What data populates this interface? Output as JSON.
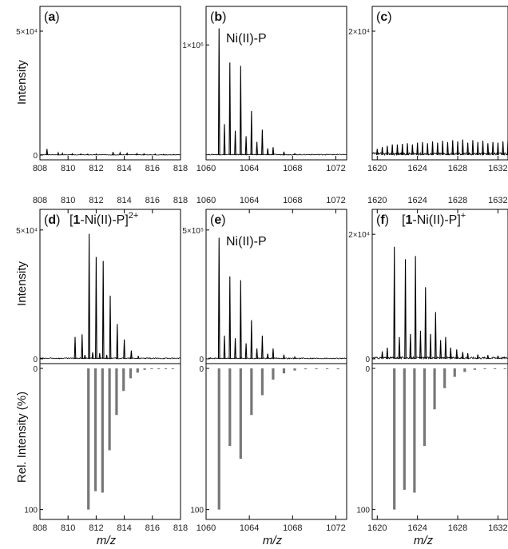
{
  "ylabels": {
    "intensity": "Intensity",
    "rel_intensity": "Rel. Intensity (%)"
  },
  "xlabel": "m/z",
  "chart_data": [
    {
      "panel": "(a)",
      "type": "line",
      "row": "top",
      "col": 0,
      "xlim": [
        808,
        818
      ],
      "xticks": [
        808,
        810,
        812,
        814,
        816,
        818
      ],
      "ylim": [
        0,
        60000
      ],
      "ytick_labels": [
        "0",
        "5×10⁴"
      ],
      "ytick_values": [
        0,
        50000
      ],
      "annotation": "",
      "peaks": [
        [
          808.5,
          2500
        ],
        [
          809.3,
          900
        ],
        [
          809.6,
          700
        ],
        [
          810.3,
          500
        ],
        [
          810.9,
          400
        ],
        [
          811.4,
          350
        ],
        [
          812.0,
          400
        ],
        [
          813.2,
          1200
        ],
        [
          813.7,
          900
        ],
        [
          814.2,
          700
        ],
        [
          814.9,
          600
        ],
        [
          815.4,
          500
        ],
        [
          816.2,
          400
        ],
        [
          816.8,
          300
        ],
        [
          817.5,
          250
        ]
      ],
      "noise": 200
    },
    {
      "panel": "(b)",
      "type": "line",
      "row": "top",
      "col": 1,
      "xlim": [
        1060,
        1073
      ],
      "xticks": [
        1060,
        1064,
        1068,
        1072
      ],
      "ylim": [
        0,
        1350000
      ],
      "ytick_labels": [
        "1×10⁶"
      ],
      "ytick_values": [
        1000000
      ],
      "annotation": "Ni(II)-P",
      "peaks": [
        [
          1061.2,
          1150000
        ],
        [
          1061.7,
          280000
        ],
        [
          1062.2,
          840000
        ],
        [
          1062.7,
          220000
        ],
        [
          1063.2,
          810000
        ],
        [
          1063.7,
          170000
        ],
        [
          1064.2,
          400000
        ],
        [
          1064.7,
          120000
        ],
        [
          1065.2,
          230000
        ],
        [
          1065.7,
          60000
        ],
        [
          1066.2,
          70000
        ],
        [
          1067.2,
          30000
        ],
        [
          1068.2,
          12000
        ]
      ],
      "noise": 8000
    },
    {
      "panel": "(c)",
      "type": "line",
      "row": "top",
      "col": 2,
      "xlim": [
        1619.5,
        1633
      ],
      "xticks": [
        1620,
        1624,
        1628,
        1632
      ],
      "ylim": [
        0,
        24000
      ],
      "ytick_labels": [
        "2×10⁴"
      ],
      "ytick_values": [
        20000
      ],
      "annotation": "",
      "envelope": {
        "start": 1620.0,
        "step": 0.5,
        "values": [
          1000,
          1300,
          1500,
          1700,
          1700,
          1800,
          1900,
          1700,
          2000,
          2100,
          1900,
          2200,
          2000,
          2300,
          2100,
          2400,
          2200,
          2500,
          2000,
          2400,
          2100,
          2300,
          1900,
          2100,
          2000,
          2200,
          2400,
          2600,
          3000,
          3200,
          3400,
          3500,
          3300,
          3100,
          2800,
          2400,
          2100,
          1900,
          1700,
          1500
        ]
      },
      "noise": 400
    },
    {
      "panel": "(d)",
      "type": "line",
      "row": "mid",
      "col": 0,
      "xlim": [
        808,
        818
      ],
      "xticks": [
        808,
        810,
        812,
        814,
        816,
        818
      ],
      "ylim": [
        0,
        58000
      ],
      "ytick_labels": [
        "0",
        "5×10⁴"
      ],
      "ytick_values": [
        0,
        50000
      ],
      "annotation": "[1-Ni(II)-P]2+",
      "peaks": [
        [
          810.5,
          8500
        ],
        [
          811.0,
          9500
        ],
        [
          811.2,
          1500
        ],
        [
          811.5,
          48500
        ],
        [
          811.75,
          2500
        ],
        [
          812.0,
          39500
        ],
        [
          812.25,
          2200
        ],
        [
          812.5,
          38000
        ],
        [
          812.75,
          1500
        ],
        [
          813.0,
          24500
        ],
        [
          813.5,
          13500
        ],
        [
          814.0,
          7500
        ],
        [
          814.5,
          3200
        ],
        [
          815.0,
          1100
        ]
      ],
      "noise": 400
    },
    {
      "panel": "(e)",
      "type": "line",
      "row": "mid",
      "col": 1,
      "xlim": [
        1060,
        1073
      ],
      "xticks": [
        1060,
        1064,
        1068,
        1072
      ],
      "ylim": [
        0,
        580000
      ],
      "ytick_labels": [
        "0",
        "5×10⁵"
      ],
      "ytick_values": [
        0,
        500000
      ],
      "annotation": "Ni(II)-P",
      "peaks": [
        [
          1061.2,
          470000
        ],
        [
          1061.7,
          90000
        ],
        [
          1062.2,
          320000
        ],
        [
          1062.7,
          80000
        ],
        [
          1063.2,
          305000
        ],
        [
          1063.7,
          60000
        ],
        [
          1064.2,
          150000
        ],
        [
          1064.7,
          40000
        ],
        [
          1065.2,
          90000
        ],
        [
          1065.7,
          20000
        ],
        [
          1066.2,
          40000
        ],
        [
          1067.2,
          16000
        ],
        [
          1068.2,
          7000
        ]
      ],
      "noise": 4000
    },
    {
      "panel": "(f)",
      "type": "line",
      "row": "mid",
      "col": 2,
      "xlim": [
        1619.5,
        1633
      ],
      "xticks": [
        1620,
        1624,
        1628,
        1632
      ],
      "ylim": [
        0,
        24000
      ],
      "ytick_labels": [
        "0",
        "2×10⁴"
      ],
      "ytick_values": [
        0,
        20000
      ],
      "annotation": "[1-Ni(II)-P]+",
      "peaks": [
        [
          1620.5,
          1200
        ],
        [
          1621.0,
          1800
        ],
        [
          1621.7,
          18000
        ],
        [
          1622.2,
          3500
        ],
        [
          1622.8,
          16000
        ],
        [
          1623.3,
          4000
        ],
        [
          1623.8,
          16500
        ],
        [
          1624.3,
          4500
        ],
        [
          1624.8,
          11500
        ],
        [
          1625.3,
          4000
        ],
        [
          1625.8,
          7500
        ],
        [
          1626.3,
          3000
        ],
        [
          1626.8,
          3500
        ],
        [
          1627.3,
          1800
        ],
        [
          1627.9,
          1500
        ],
        [
          1628.5,
          1100
        ],
        [
          1629.0,
          900
        ],
        [
          1630.0,
          700
        ],
        [
          1631.0,
          600
        ],
        [
          1632.0,
          500
        ]
      ],
      "noise": 300
    },
    {
      "panel": "",
      "type": "bar",
      "row": "bottom",
      "col": 0,
      "xlim": [
        808,
        818
      ],
      "xticks": [
        808,
        810,
        812,
        814,
        816,
        818
      ],
      "ylim": [
        0,
        107
      ],
      "inverted": true,
      "ytick_labels": [
        "0",
        "100"
      ],
      "ytick_values": [
        0,
        100
      ],
      "bars": [
        [
          811.45,
          100
        ],
        [
          811.95,
          87
        ],
        [
          812.45,
          88
        ],
        [
          812.95,
          58
        ],
        [
          813.45,
          33
        ],
        [
          813.95,
          16
        ],
        [
          814.45,
          7
        ],
        [
          814.95,
          3
        ],
        [
          815.45,
          1
        ],
        [
          815.95,
          0.5
        ],
        [
          816.45,
          0.3
        ],
        [
          816.95,
          0.2
        ],
        [
          817.45,
          0.1
        ]
      ]
    },
    {
      "panel": "",
      "type": "bar",
      "row": "bottom",
      "col": 1,
      "xlim": [
        1060,
        1073
      ],
      "xticks": [
        1060,
        1064,
        1068,
        1072
      ],
      "ylim": [
        0,
        107
      ],
      "inverted": true,
      "ytick_labels": [
        "0",
        "100"
      ],
      "ytick_values": [
        0,
        100
      ],
      "bars": [
        [
          1061.2,
          100
        ],
        [
          1062.2,
          55
        ],
        [
          1063.2,
          64
        ],
        [
          1064.2,
          33
        ],
        [
          1065.2,
          19
        ],
        [
          1066.2,
          8
        ],
        [
          1067.2,
          3.5
        ],
        [
          1068.2,
          1.5
        ],
        [
          1069.2,
          0.6
        ],
        [
          1070.2,
          0.3
        ],
        [
          1071.2,
          0.2
        ],
        [
          1072.2,
          0.1
        ]
      ]
    },
    {
      "panel": "",
      "type": "bar",
      "row": "bottom",
      "col": 2,
      "xlim": [
        1619.5,
        1633
      ],
      "xticks": [
        1620,
        1624,
        1628,
        1632
      ],
      "ylim": [
        0,
        107
      ],
      "inverted": true,
      "ytick_labels": [
        "0",
        "100"
      ],
      "ytick_values": [
        0,
        100
      ],
      "bars": [
        [
          1621.7,
          100
        ],
        [
          1622.7,
          86
        ],
        [
          1623.7,
          88
        ],
        [
          1624.7,
          55
        ],
        [
          1625.7,
          29
        ],
        [
          1626.7,
          14
        ],
        [
          1627.7,
          6
        ],
        [
          1628.7,
          2.5
        ],
        [
          1629.7,
          1
        ],
        [
          1630.7,
          0.4
        ],
        [
          1631.7,
          0.2
        ],
        [
          1632.7,
          0.1
        ]
      ]
    }
  ]
}
